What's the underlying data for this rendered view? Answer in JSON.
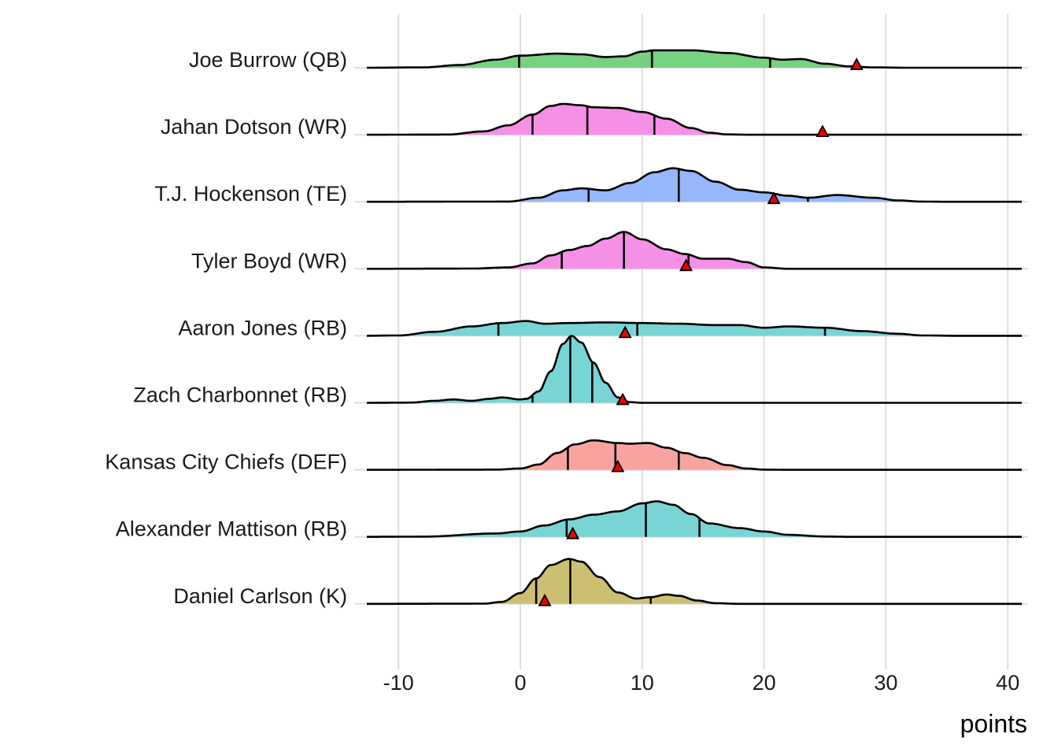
{
  "chart_data": {
    "type": "ridgeline",
    "title": "",
    "xlabel": "points",
    "ylabel": "",
    "xlim": [
      -12.5,
      41
    ],
    "x_ticks": [
      -10,
      0,
      10,
      20,
      30,
      40
    ],
    "x_tick_labels": [
      "-10",
      "0",
      "10",
      "20",
      "30",
      "40"
    ],
    "grid": true,
    "quantile_lines": [
      0.25,
      0.5,
      0.75
    ],
    "marker": {
      "shape": "triangle",
      "color": "#ee0000",
      "meaning": "point value"
    },
    "series": [
      {
        "name": "Joe Burrow (QB)",
        "color": "#72cf7c",
        "quantiles": [
          -0.1,
          10.8,
          20.5
        ],
        "marker_value": 27.6,
        "density": [
          [
            -13,
            0
          ],
          [
            -8,
            0.005
          ],
          [
            -5,
            0.04
          ],
          [
            -2,
            0.12
          ],
          [
            0,
            0.18
          ],
          [
            3,
            0.21
          ],
          [
            5,
            0.2
          ],
          [
            7,
            0.16
          ],
          [
            8.5,
            0.17
          ],
          [
            10,
            0.24
          ],
          [
            11,
            0.26
          ],
          [
            14,
            0.26
          ],
          [
            17,
            0.22
          ],
          [
            20,
            0.15
          ],
          [
            21.5,
            0.12
          ],
          [
            23,
            0.13
          ],
          [
            25,
            0.06
          ],
          [
            27,
            0.02
          ],
          [
            29,
            0.005
          ],
          [
            32,
            0
          ],
          [
            41,
            0
          ]
        ]
      },
      {
        "name": "Jahan Dotson (WR)",
        "color": "#f58ce5",
        "quantiles": [
          1.0,
          5.5,
          11.0
        ],
        "marker_value": 24.8,
        "density": [
          [
            -13,
            0
          ],
          [
            -6,
            0.003
          ],
          [
            -3,
            0.05
          ],
          [
            -1,
            0.14
          ],
          [
            1,
            0.3
          ],
          [
            2.5,
            0.43
          ],
          [
            3.5,
            0.46
          ],
          [
            5,
            0.44
          ],
          [
            6,
            0.41
          ],
          [
            8,
            0.4
          ],
          [
            10,
            0.34
          ],
          [
            12,
            0.24
          ],
          [
            14,
            0.1
          ],
          [
            15.5,
            0.03
          ],
          [
            17,
            0.005
          ],
          [
            19,
            0
          ],
          [
            41,
            0
          ]
        ]
      },
      {
        "name": "T.J. Hockenson (TE)",
        "color": "#93b5fb",
        "quantiles": [
          5.6,
          13.0,
          23.6
        ],
        "marker_value": 20.8,
        "density": [
          [
            -13,
            0
          ],
          [
            -1,
            0.003
          ],
          [
            1.5,
            0.06
          ],
          [
            3.5,
            0.17
          ],
          [
            5,
            0.2
          ],
          [
            7,
            0.17
          ],
          [
            9,
            0.28
          ],
          [
            11,
            0.44
          ],
          [
            12.5,
            0.5
          ],
          [
            14,
            0.46
          ],
          [
            16,
            0.3
          ],
          [
            18,
            0.18
          ],
          [
            20,
            0.14
          ],
          [
            22,
            0.09
          ],
          [
            23.6,
            0.06
          ],
          [
            26,
            0.1
          ],
          [
            29,
            0.06
          ],
          [
            31,
            0.02
          ],
          [
            33,
            0.003
          ],
          [
            35,
            0
          ],
          [
            41,
            0
          ]
        ]
      },
      {
        "name": "Tyler Boyd (WR)",
        "color": "#f58ce5",
        "quantiles": [
          3.4,
          8.5,
          13.8
        ],
        "marker_value": 13.6,
        "density": [
          [
            -13,
            0
          ],
          [
            -4,
            0.003
          ],
          [
            -1,
            0.02
          ],
          [
            1,
            0.08
          ],
          [
            2.5,
            0.2
          ],
          [
            4,
            0.28
          ],
          [
            5.5,
            0.34
          ],
          [
            7,
            0.45
          ],
          [
            8.5,
            0.55
          ],
          [
            10,
            0.44
          ],
          [
            12,
            0.29
          ],
          [
            13.5,
            0.22
          ],
          [
            15,
            0.15
          ],
          [
            17,
            0.15
          ],
          [
            18.5,
            0.1
          ],
          [
            20,
            0.02
          ],
          [
            22,
            0
          ],
          [
            41,
            0
          ]
        ]
      },
      {
        "name": "Aaron Jones (RB)",
        "color": "#75d3d4",
        "quantiles": [
          -1.8,
          9.6,
          25.0
        ],
        "marker_value": 8.6,
        "density": [
          [
            -13,
            0
          ],
          [
            -10,
            0.005
          ],
          [
            -7,
            0.06
          ],
          [
            -4,
            0.14
          ],
          [
            -1.5,
            0.19
          ],
          [
            0.5,
            0.22
          ],
          [
            2,
            0.18
          ],
          [
            4,
            0.19
          ],
          [
            7,
            0.2
          ],
          [
            10,
            0.19
          ],
          [
            13,
            0.18
          ],
          [
            16,
            0.16
          ],
          [
            18,
            0.16
          ],
          [
            20,
            0.12
          ],
          [
            22,
            0.14
          ],
          [
            25,
            0.12
          ],
          [
            28,
            0.07
          ],
          [
            31,
            0.03
          ],
          [
            33,
            0.005
          ],
          [
            36,
            0
          ],
          [
            41,
            0
          ]
        ]
      },
      {
        "name": "Zach Charbonnet (RB)",
        "color": "#75d3d4",
        "quantiles": [
          1.0,
          4.1,
          5.9
        ],
        "marker_value": 8.4,
        "density": [
          [
            -13,
            0
          ],
          [
            -9,
            0.003
          ],
          [
            -7,
            0.03
          ],
          [
            -5.5,
            0.05
          ],
          [
            -4,
            0.03
          ],
          [
            -2.5,
            0.06
          ],
          [
            -1.5,
            0.08
          ],
          [
            0,
            0.05
          ],
          [
            0.5,
            0.06
          ],
          [
            1.5,
            0.17
          ],
          [
            2.5,
            0.47
          ],
          [
            3.5,
            0.88
          ],
          [
            4.2,
            1.0
          ],
          [
            5,
            0.9
          ],
          [
            6,
            0.6
          ],
          [
            7,
            0.3
          ],
          [
            8,
            0.08
          ],
          [
            9,
            0.01
          ],
          [
            10,
            0
          ],
          [
            41,
            0
          ]
        ]
      },
      {
        "name": "Kansas City Chiefs (DEF)",
        "color": "#f8a09c",
        "quantiles": [
          3.9,
          7.8,
          13.0
        ],
        "marker_value": 8.0,
        "density": [
          [
            -13,
            0
          ],
          [
            -2,
            0.003
          ],
          [
            0,
            0.02
          ],
          [
            1.5,
            0.08
          ],
          [
            3,
            0.25
          ],
          [
            4.5,
            0.38
          ],
          [
            6,
            0.44
          ],
          [
            8,
            0.4
          ],
          [
            9,
            0.39
          ],
          [
            10.5,
            0.4
          ],
          [
            12,
            0.33
          ],
          [
            13.5,
            0.25
          ],
          [
            15,
            0.18
          ],
          [
            17,
            0.07
          ],
          [
            18.5,
            0.02
          ],
          [
            20,
            0.003
          ],
          [
            22,
            0
          ],
          [
            41,
            0
          ]
        ]
      },
      {
        "name": "Alexander Mattison (RB)",
        "color": "#75d3d4",
        "quantiles": [
          3.8,
          10.3,
          14.7
        ],
        "marker_value": 4.3,
        "density": [
          [
            -13,
            0
          ],
          [
            -8,
            0.003
          ],
          [
            -2,
            0.05
          ],
          [
            0,
            0.08
          ],
          [
            2,
            0.17
          ],
          [
            4,
            0.26
          ],
          [
            6,
            0.33
          ],
          [
            8,
            0.38
          ],
          [
            10,
            0.5
          ],
          [
            11.2,
            0.53
          ],
          [
            12.5,
            0.48
          ],
          [
            14,
            0.34
          ],
          [
            15.5,
            0.2
          ],
          [
            18,
            0.13
          ],
          [
            20,
            0.08
          ],
          [
            22,
            0.03
          ],
          [
            25,
            0.005
          ],
          [
            27,
            0
          ],
          [
            41,
            0
          ]
        ]
      },
      {
        "name": "Daniel Carlson (K)",
        "color": "#cbbd6c",
        "quantiles": [
          1.3,
          4.1,
          10.7
        ],
        "marker_value": 2.0,
        "density": [
          [
            -13,
            0
          ],
          [
            -3,
            0.003
          ],
          [
            -1.5,
            0.03
          ],
          [
            0,
            0.16
          ],
          [
            1.3,
            0.38
          ],
          [
            2.5,
            0.58
          ],
          [
            4,
            0.67
          ],
          [
            5,
            0.63
          ],
          [
            6.5,
            0.4
          ],
          [
            8,
            0.17
          ],
          [
            9.5,
            0.08
          ],
          [
            10.7,
            0.1
          ],
          [
            12,
            0.14
          ],
          [
            13,
            0.12
          ],
          [
            14.5,
            0.05
          ],
          [
            16,
            0.01
          ],
          [
            18,
            0
          ],
          [
            41,
            0
          ]
        ]
      }
    ]
  }
}
